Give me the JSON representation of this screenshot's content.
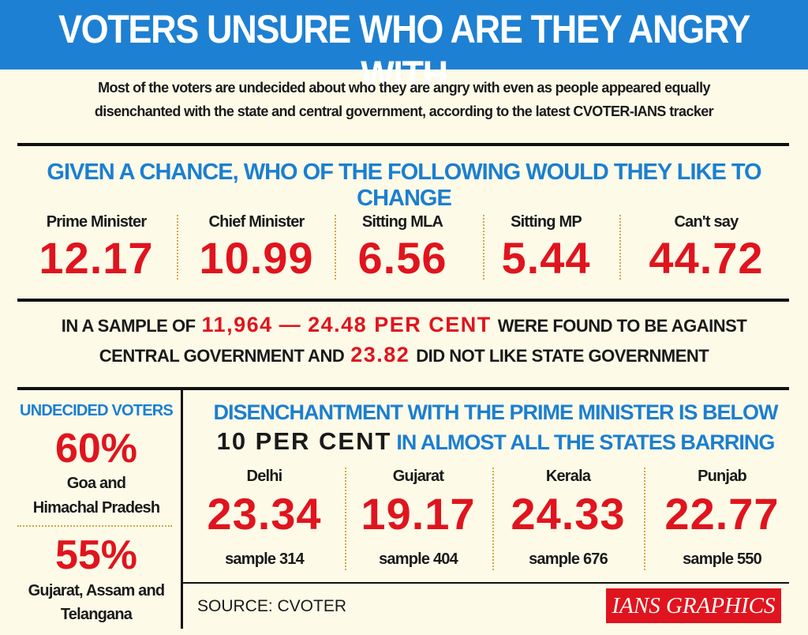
{
  "header": {
    "title": "VOTERS UNSURE WHO ARE THEY ANGRY WITH",
    "intro": [
      "Most of the voters are undecided about who they are angry with even as people appeared equally",
      "disenchanted with the state and central government, according to the latest CVOTER-IANS tracker"
    ]
  },
  "change": {
    "heading": "GIVEN A CHANCE, WHO OF THE FOLLOWING WOULD THEY LIKE TO CHANGE",
    "items": [
      {
        "label": "Prime Minister",
        "value": "12.17"
      },
      {
        "label": "Chief Minister",
        "value": "10.99"
      },
      {
        "label": "Sitting MLA",
        "value": "6.56"
      },
      {
        "label": "Sitting MP",
        "value": "5.44"
      },
      {
        "label": "Can't say",
        "value": "44.72"
      }
    ]
  },
  "sample": {
    "line1": [
      "IN A SAMPLE OF",
      "11,964",
      "—",
      "24.48 PER CENT",
      "WERE FOUND TO BE AGAINST"
    ],
    "line2": [
      "CENTRAL GOVERNMENT AND",
      "23.82",
      "DID NOT LIKE STATE GOVERNMENT"
    ]
  },
  "undecided": {
    "heading": "UNDECIDED VOTERS",
    "groups": [
      {
        "value": "60%",
        "lines": [
          "Goa and",
          "Himachal Pradesh"
        ]
      },
      {
        "value": "55%",
        "lines": [
          "Gujarat, Assam and",
          "Telangana"
        ]
      }
    ]
  },
  "disenchantment": {
    "heading_line1": "DISENCHANTMENT WITH THE PRIME MINISTER IS BELOW",
    "emphasis": "10 PER CENT",
    "heading_line2": "IN ALMOST ALL THE STATES BARRING",
    "states": [
      {
        "name": "Delhi",
        "value": "23.34",
        "sample": "sample 314"
      },
      {
        "name": "Gujarat",
        "value": "19.17",
        "sample": "sample 404"
      },
      {
        "name": "Kerala",
        "value": "24.33",
        "sample": "sample 676"
      },
      {
        "name": "Punjab",
        "value": "22.77",
        "sample": "sample 550"
      }
    ]
  },
  "footer": {
    "source": "SOURCE: CVOTER",
    "brand": "IANS GRAPHICS"
  }
}
